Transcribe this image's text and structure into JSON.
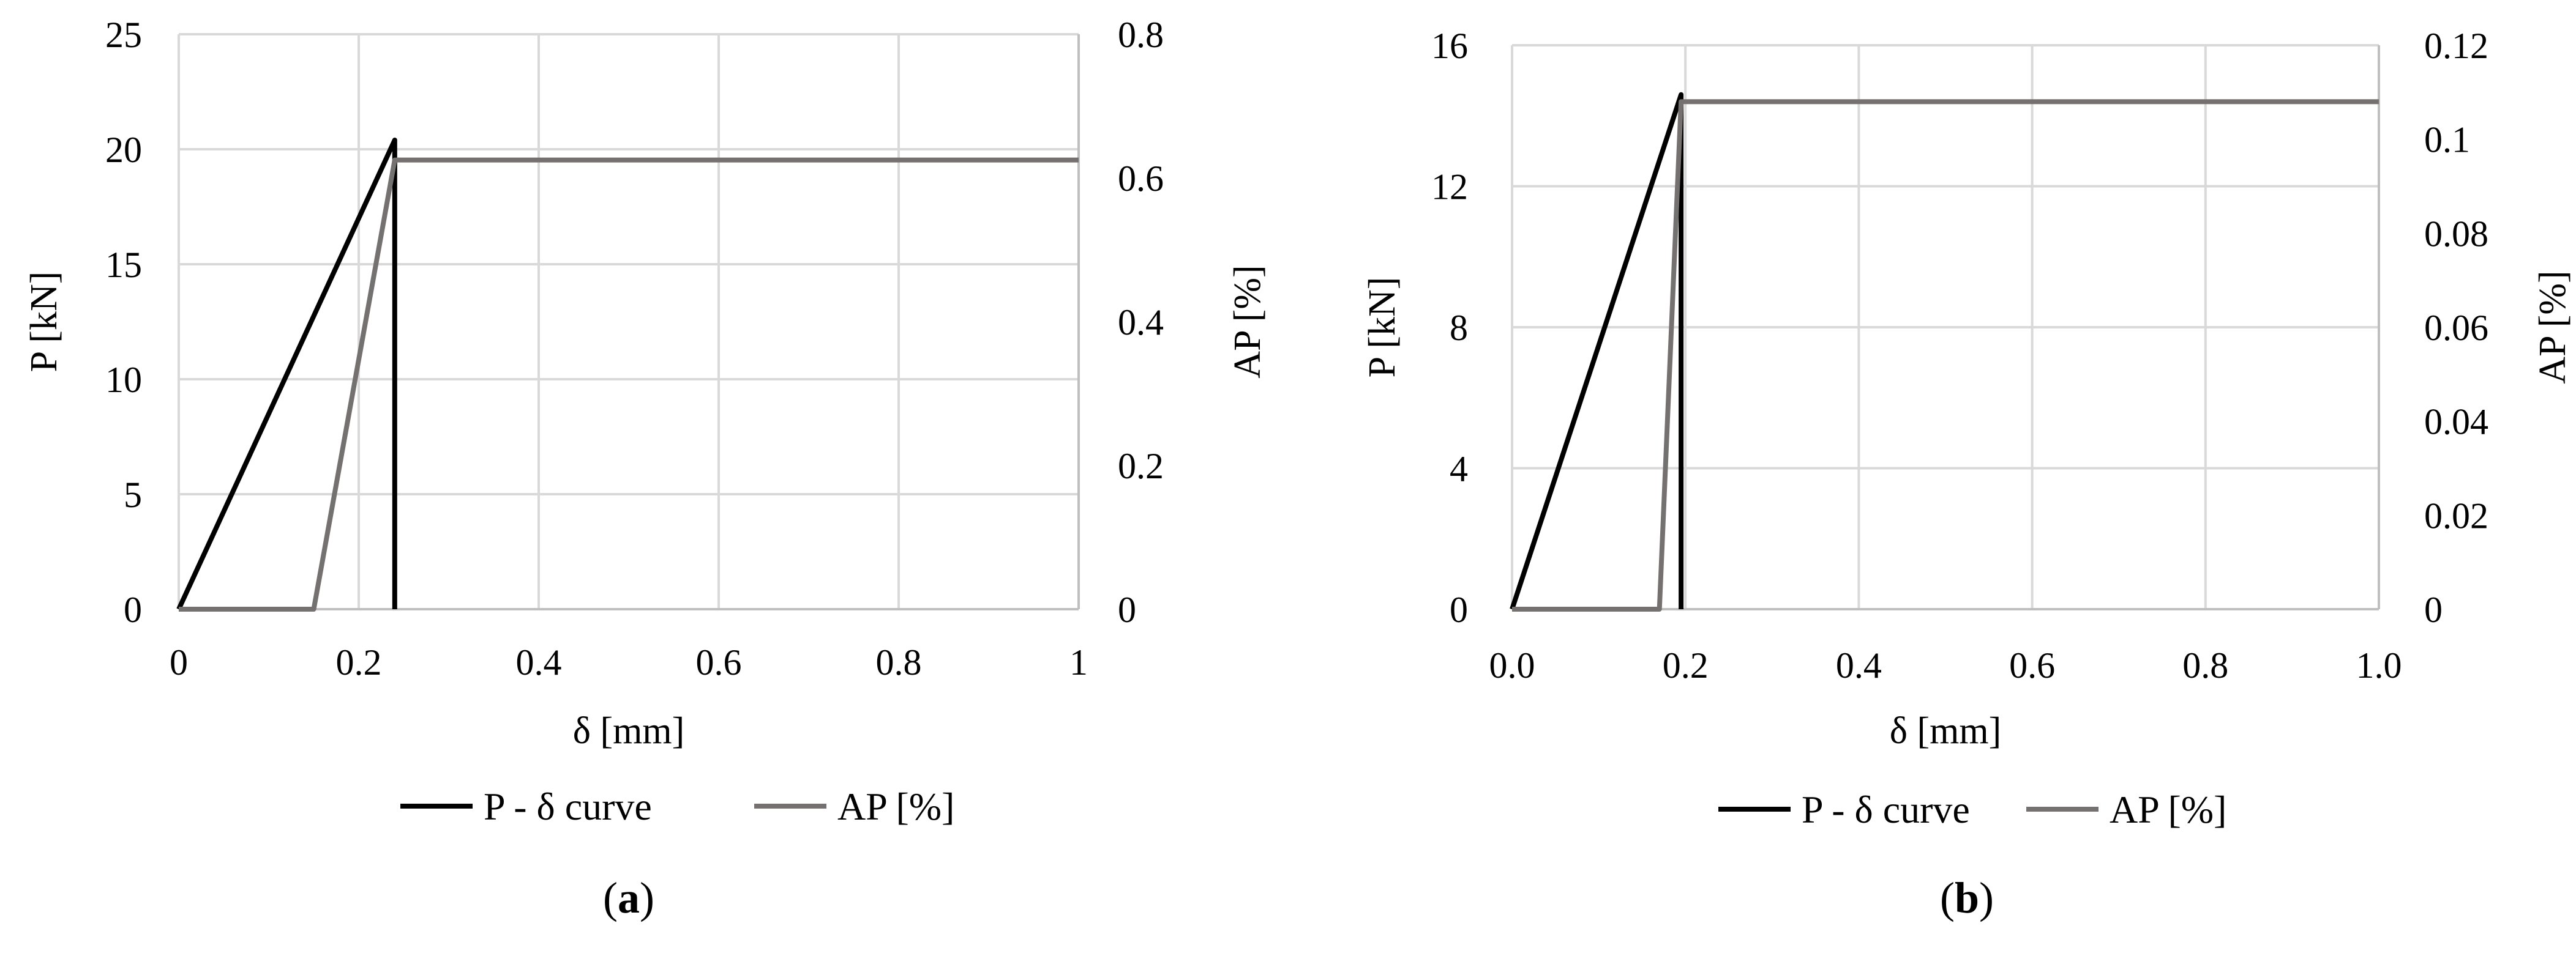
{
  "chart_data": [
    {
      "type": "line",
      "xlabel": "δ [mm]",
      "ylabel": "P [kN]",
      "y2label": "AP [%]",
      "xlim": [
        0,
        1
      ],
      "ylim": [
        0,
        25
      ],
      "y2lim": [
        0,
        0.8
      ],
      "x_ticks": [
        "0",
        "0.2",
        "0.4",
        "0.6",
        "0.8",
        "1"
      ],
      "y_ticks": [
        "0",
        "5",
        "10",
        "15",
        "20",
        "25"
      ],
      "y2_ticks": [
        "0",
        "0.2",
        "0.4",
        "0.6",
        "0.8"
      ],
      "grid": true,
      "legend_position": "bottom",
      "caption_label": "a",
      "series": [
        {
          "name": "P - δ curve",
          "axis": "left",
          "color": "#000000",
          "x": [
            0,
            0.24,
            0.24
          ],
          "y": [
            0,
            20.4,
            0
          ]
        },
        {
          "name": "AP [%]",
          "axis": "right",
          "color": "#767171",
          "x": [
            0,
            0.15,
            0.24,
            1.0
          ],
          "y": [
            0,
            0,
            0.625,
            0.625
          ]
        }
      ]
    },
    {
      "type": "line",
      "xlabel": "δ [mm]",
      "ylabel": "P [kN]",
      "y2label": "AP [%]",
      "xlim": [
        0,
        1
      ],
      "ylim": [
        0,
        16
      ],
      "y2lim": [
        0,
        0.12
      ],
      "x_ticks": [
        "0.0",
        "0.2",
        "0.4",
        "0.6",
        "0.8",
        "1.0"
      ],
      "y_ticks": [
        "0",
        "4",
        "8",
        "12",
        "16"
      ],
      "y2_ticks": [
        "0",
        "0.02",
        "0.04",
        "0.06",
        "0.08",
        "0.1",
        "0.12"
      ],
      "grid": true,
      "legend_position": "bottom",
      "caption_label": "b",
      "series": [
        {
          "name": "P - δ curve",
          "axis": "left",
          "color": "#000000",
          "x": [
            0,
            0.195,
            0.195
          ],
          "y": [
            0,
            14.6,
            0
          ]
        },
        {
          "name": "AP [%]",
          "axis": "right",
          "color": "#767171",
          "x": [
            0,
            0.17,
            0.195,
            1.0
          ],
          "y": [
            0,
            0,
            0.108,
            0.108
          ]
        }
      ]
    }
  ]
}
